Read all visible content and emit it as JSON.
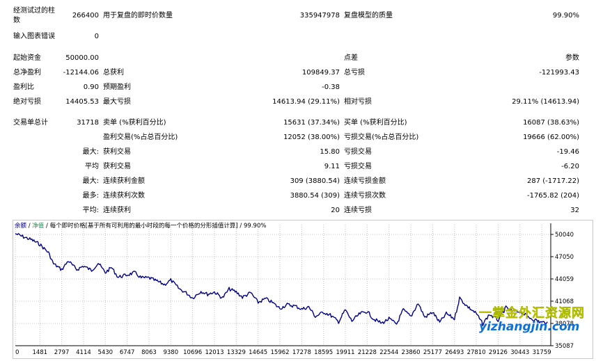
{
  "report": {
    "row1": {
      "bars_label": "经测试过的柱",
      "bars_label2": "数",
      "bars_value": "266400",
      "ticks_label": "用于复盘的即时价数量",
      "ticks_value": "335947978",
      "quality_label": "复盘模型的质量",
      "quality_value": "99.90%"
    },
    "row2": {
      "errors_label": "输入图表错误",
      "errors_value": "0"
    },
    "initial_deposit_label": "起始资金",
    "initial_deposit_value": "50000.00",
    "spread_label": "点差",
    "spread_value": "参数",
    "total_net_profit_label": "总净盈利",
    "total_net_profit_value": "-12144.06",
    "gross_profit_label": "总获利",
    "gross_profit_value": "109849.37",
    "gross_loss_label": "总亏损",
    "gross_loss_value": "-121993.43",
    "profit_factor_label": "盈利比",
    "profit_factor_value": "0.90",
    "expected_payoff_label": "预期盈利",
    "expected_payoff_value": "-0.38",
    "absolute_drawdown_label": "绝对亏损",
    "absolute_drawdown_value": "14405.53",
    "maximal_drawdown_label": "最大亏损",
    "maximal_drawdown_value": "14613.94 (29.11%)",
    "relative_drawdown_label": "相对亏损",
    "relative_drawdown_value": "29.11% (14613.94)",
    "total_trades_label": "交易单总计",
    "total_trades_value": "31718",
    "short_positions_label": "卖单 (%获利百分比)",
    "short_positions_value": "15631 (37.34%)",
    "long_positions_label": "买单 (%获利百分比)",
    "long_positions_value": "16087 (38.63%)",
    "profit_trades_label": "盈利交易(%占总百分比)",
    "profit_trades_value": "12052 (38.00%)",
    "loss_trades_label": "亏损交易(%占总百分比)",
    "loss_trades_value": "19666 (62.00%)",
    "largest_label": "最大:",
    "largest_profit_label": "获利交易",
    "largest_profit_value": "15.80",
    "largest_loss_label": "亏损交易",
    "largest_loss_value": "-19.46",
    "average_label": "平均",
    "average_profit_label": "获利交易",
    "average_profit_value": "9.11",
    "average_loss_label": "亏损交易",
    "average_loss_value": "-6.20",
    "maximum_label": "最大:",
    "max_consec_wins_label": "连续获利金额",
    "max_consec_wins_value": "309 (3880.54)",
    "max_consec_losses_label": "连续亏损金额",
    "max_consec_losses_value": "287 (-1717.22)",
    "maximal_label": "最多:",
    "maximal_consec_profit_label": "连续获利次数",
    "maximal_consec_profit_value": "3880.54 (309)",
    "maximal_consec_loss_label": "连续亏损次数",
    "maximal_consec_loss_value": "-1765.82 (204)",
    "avg_consec_label": "平均:",
    "avg_consec_wins_label": "连续获利",
    "avg_consec_wins_value": "20",
    "avg_consec_losses_label": "连续亏损",
    "avg_consec_losses_value": "32"
  },
  "chart_header": {
    "balance": "余额",
    "sep1": " / ",
    "equity": "净值",
    "sep2": " / ",
    "model_text": "每个即时价格[基于所有可利用的最小时段的每一个价格的分形插值计算]",
    "sep3": " / ",
    "quality": "99.90%"
  },
  "colors": {
    "line": "#00008b",
    "equity": "#2e8b57",
    "grid": "#c0c0c0",
    "watermark_cn": "#f2e400",
    "watermark_url": "#0f6fd8"
  },
  "watermark": {
    "cn": "一掌金外汇资源网",
    "url": "yizhangjin.com"
  },
  "chart_data": {
    "type": "line",
    "title": "",
    "xlabel": "",
    "ylabel": "",
    "x_ticks": [
      "0",
      "1481",
      "2797",
      "4114",
      "5430",
      "6747",
      "8063",
      "9380",
      "10696",
      "12013",
      "13329",
      "14645",
      "15962",
      "17278",
      "18595",
      "19911",
      "21228",
      "22544",
      "23860",
      "25177",
      "26493",
      "27810",
      "29126",
      "30443",
      "31759"
    ],
    "y_ticks": [
      "50040",
      "47050",
      "44059",
      "41068",
      "38078",
      "35087"
    ],
    "xlim": [
      0,
      32300
    ],
    "ylim": [
      35087,
      50600
    ],
    "grid": true,
    "series": [
      {
        "x": [
          0,
          500,
          1000,
          1481,
          2000,
          2300,
          2797,
          3200,
          3700,
          4114,
          4600,
          5000,
          5430,
          5800,
          6200,
          6747,
          7200,
          7600,
          8063,
          8500,
          9000,
          9380,
          9900,
          10300,
          10696,
          11200,
          11600,
          12013,
          12500,
          12900,
          13329,
          13700,
          14200,
          14645,
          15100,
          15500,
          15962,
          16400,
          16900,
          17278,
          17700,
          18100,
          18595,
          19000,
          19500,
          19911,
          20300,
          20800,
          21228,
          21600,
          22100,
          22544,
          23000,
          23400,
          23860,
          24300,
          24700,
          25177,
          25600,
          26000,
          26493,
          26800,
          27200,
          27810,
          28200,
          28600,
          29126,
          29600,
          30000,
          30443,
          30900,
          31300,
          31759,
          32100
        ],
        "values": [
          50140,
          49700,
          49300,
          48700,
          47600,
          46100,
          45300,
          46500,
          45300,
          45800,
          45200,
          46200,
          44900,
          45600,
          44300,
          44600,
          44900,
          44200,
          44200,
          43800,
          43300,
          43900,
          42700,
          42200,
          41500,
          42400,
          42000,
          42300,
          41500,
          42700,
          42300,
          41600,
          42200,
          40900,
          41400,
          40900,
          40100,
          40600,
          40400,
          40000,
          40300,
          39000,
          39600,
          39200,
          38300,
          39900,
          38400,
          39400,
          39700,
          38700,
          38100,
          38700,
          38000,
          39900,
          39000,
          40800,
          38900,
          39600,
          38200,
          39400,
          38700,
          41500,
          40500,
          39400,
          38000,
          39300,
          38500,
          40200,
          39700,
          39700,
          39000,
          38600,
          38200,
          38300
        ]
      }
    ]
  }
}
